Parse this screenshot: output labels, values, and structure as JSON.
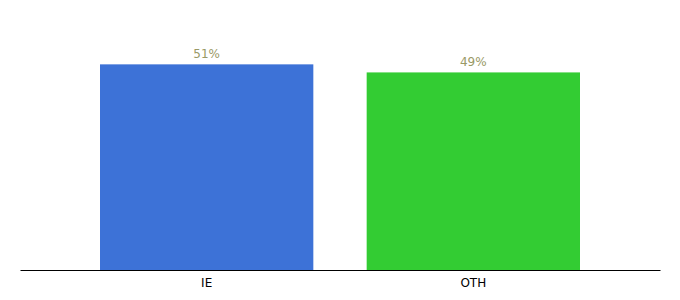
{
  "chart_data": {
    "type": "bar",
    "categories": [
      "IE",
      "OTH"
    ],
    "values": [
      51,
      49
    ],
    "colors": [
      "#3d72d7",
      "#33cc33"
    ],
    "value_labels": [
      "51%",
      "49%"
    ],
    "data_labels": true,
    "ylim": [
      0,
      62
    ],
    "tick_labels": "x"
  }
}
